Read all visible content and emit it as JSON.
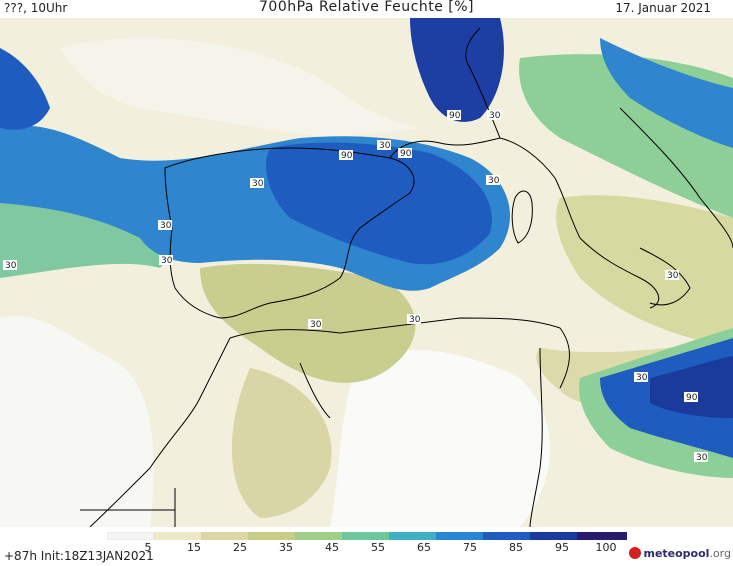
{
  "header": {
    "left": "???, 10Uhr",
    "title": "700hPa Relative Feuchte [%]",
    "date": "17. Januar 2021"
  },
  "map": {
    "contour_labels": [
      "30",
      "90",
      "90",
      "30",
      "90",
      "30",
      "30",
      "30",
      "30",
      "30",
      "30",
      "30",
      "90",
      "30",
      "30",
      "30"
    ]
  },
  "colorbar": {
    "ticks": [
      "5",
      "15",
      "25",
      "35",
      "45",
      "55",
      "65",
      "75",
      "85",
      "95",
      "100"
    ],
    "colors": [
      "#f5f5f5",
      "#ede9c8",
      "#dcd6a4",
      "#c6cf84",
      "#9fd08a",
      "#6dc79a",
      "#3fb0c4",
      "#2a85d2",
      "#1d5ec0",
      "#1a3a9c",
      "#2a1a6e"
    ]
  },
  "footer": {
    "run_info": "+87h  Init:18Z13JAN2021",
    "logo_m": "meteopool",
    "logo_org": ".org"
  }
}
